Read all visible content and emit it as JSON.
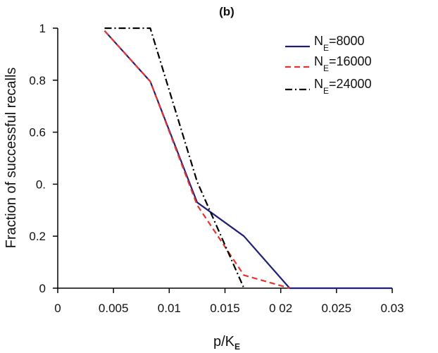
{
  "chart_data": {
    "type": "line",
    "title": "(b)",
    "xlabel": "p/K",
    "xlabel_sub": "E",
    "ylabel": "Fraction of successful recalls",
    "xlim": [
      0,
      0.03
    ],
    "ylim": [
      0,
      1
    ],
    "x_ticks": [
      0,
      0.005,
      0.01,
      0.015,
      0.02,
      0.025,
      0.03
    ],
    "x_tick_labels": [
      "0",
      "0.005",
      "0.01",
      "0.015",
      "0 02",
      "0.025",
      "0.03"
    ],
    "y_ticks": [
      0,
      0.2,
      0.4,
      0.6,
      0.8,
      1
    ],
    "y_tick_labels": [
      "0",
      "0.2",
      "0.",
      "0.6",
      "0.8",
      "1"
    ],
    "legend_position": "top-right",
    "series": [
      {
        "name": "N_E=8000",
        "label_main": "N",
        "label_sub": "E",
        "label_rest": "=8000",
        "color": "#1f1f7a",
        "dash": "solid",
        "x": [
          0.0042,
          0.0083,
          0.0125,
          0.0167,
          0.0208,
          0.025,
          0.03
        ],
        "y": [
          0.99,
          0.795,
          0.33,
          0.2,
          0.0,
          0.0,
          0.0
        ]
      },
      {
        "name": "N_E=16000",
        "label_main": "N",
        "label_sub": "E",
        "label_rest": "=16000",
        "color": "#e8322b",
        "dash": "dashed",
        "x": [
          0.0042,
          0.0083,
          0.0125,
          0.0167,
          0.0208
        ],
        "y": [
          0.99,
          0.795,
          0.32,
          0.05,
          0.0
        ]
      },
      {
        "name": "N_E=24000",
        "label_main": "N",
        "label_sub": "E",
        "label_rest": "=24000",
        "color": "#000000",
        "dash": "dashdot",
        "x": [
          0.0042,
          0.0083,
          0.0125,
          0.0167
        ],
        "y": [
          1.0,
          1.0,
          0.41,
          0.0
        ]
      }
    ]
  }
}
